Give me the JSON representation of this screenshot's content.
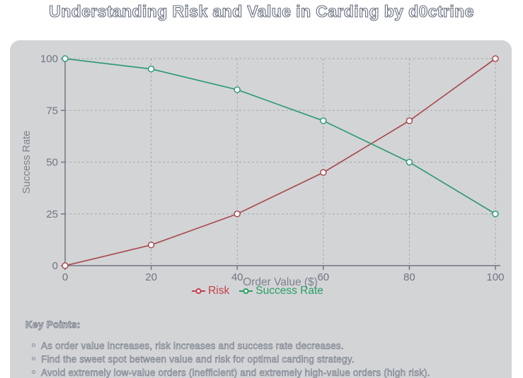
{
  "title": "Understanding Risk and Value in Carding by d0ctrine",
  "chart_data": {
    "type": "line",
    "x": [
      0,
      20,
      40,
      60,
      80,
      100
    ],
    "xticks": [
      "0",
      "20",
      "40",
      "60",
      "80",
      "100"
    ],
    "yticks": [
      "0",
      "25",
      "50",
      "75",
      "100"
    ],
    "xlabel": "Order Value ($)",
    "ylabel": "Success Rate",
    "xlim": [
      0,
      100
    ],
    "ylim": [
      0,
      100
    ],
    "grid": true,
    "legend_position": "bottom",
    "series": [
      {
        "name": "Risk",
        "values": [
          0,
          10,
          25,
          45,
          70,
          100
        ],
        "line_color": "#a94c52",
        "legend_color": "#c33f4a"
      },
      {
        "name": "Success Rate",
        "values": [
          100,
          95,
          85,
          70,
          50,
          25
        ],
        "line_color": "#319b77",
        "legend_color": "#27a064"
      }
    ]
  },
  "key_points": {
    "heading": "Key Points:",
    "items": [
      "As order value increases, risk increases and success rate decreases.",
      "Find the sweet spot between value and risk for optimal carding strategy.",
      "Avoid extremely low-value orders (inefficient) and extremely high-value orders (high risk)."
    ]
  },
  "colors": {
    "page_bg": "#ffffff",
    "card_bg": "#d3d4d6",
    "axis": "#717784",
    "tick_text": "#6f7580",
    "axis_label_text": "#7b818c",
    "grid": "#a6a9ad",
    "marker_fill": "#ffffff",
    "title_stroke": "#68707e"
  }
}
